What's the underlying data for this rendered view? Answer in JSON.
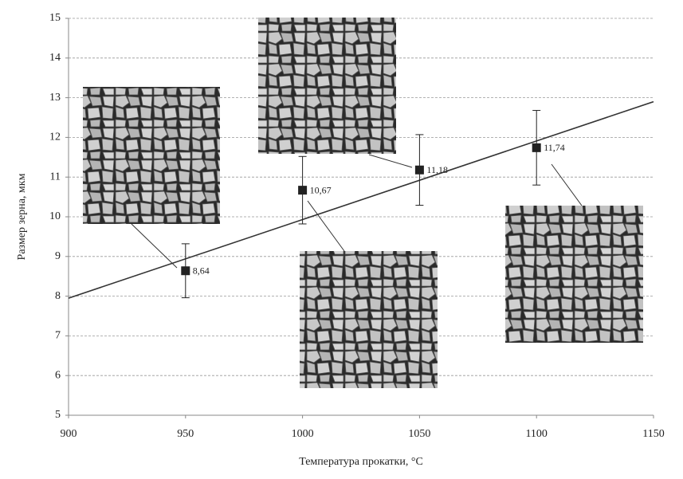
{
  "chart_data": {
    "type": "scatter",
    "x_label": "Температура прокатки, °C",
    "y_label": "Размер зерна, мкм",
    "x": [
      950,
      1000,
      1050,
      1100
    ],
    "values": [
      8.64,
      10.67,
      11.18,
      11.74
    ],
    "value_labels": [
      "8,64",
      "10,67",
      "11,18",
      "11,74"
    ],
    "errors": [
      0.68,
      0.85,
      0.89,
      0.94
    ],
    "color": "#222222",
    "trendline": {
      "x": [
        900,
        1150
      ],
      "values": [
        7.95,
        12.9
      ],
      "color": "#333333"
    },
    "xlim": [
      900,
      1150
    ],
    "xticks": [
      900,
      950,
      1000,
      1050,
      1100,
      1150
    ],
    "ylim": [
      5,
      15
    ],
    "yticks": [
      5,
      6,
      7,
      8,
      9,
      10,
      11,
      12,
      13,
      14,
      15
    ],
    "grid": true
  }
}
